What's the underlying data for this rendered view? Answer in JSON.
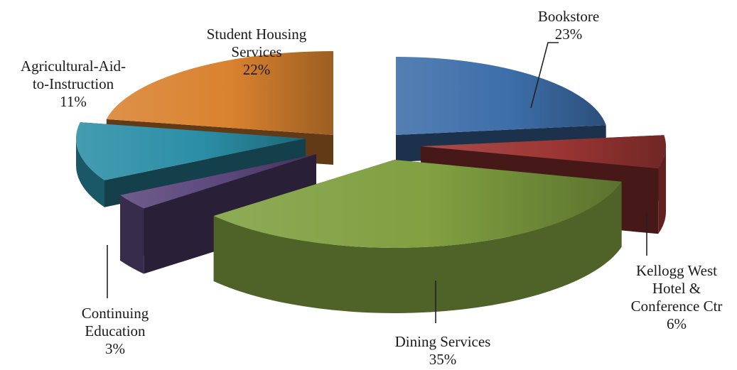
{
  "chart_data": {
    "type": "pie",
    "style": "3d-exploded",
    "title": "",
    "series": [
      {
        "slices": [
          {
            "label": "Bookstore",
            "value": 23,
            "display": "23%",
            "label_lines": [
              "Bookstore",
              "23%"
            ],
            "color": "#3d6ea9"
          },
          {
            "label": "Kellogg West Hotel & Conference Ctr",
            "value": 6,
            "display": "6%",
            "label_lines": [
              "Kellogg West",
              "Hotel &",
              "Conference Ctr",
              "6%"
            ],
            "color": "#9c3634"
          },
          {
            "label": "Dining Services",
            "value": 35,
            "display": "35%",
            "label_lines": [
              "Dining Services",
              "35%"
            ],
            "color": "#7f9f40"
          },
          {
            "label": "Continuing Education",
            "value": 3,
            "display": "3%",
            "label_lines": [
              "Continuing",
              "Education",
              "3%"
            ],
            "color": "#5b477b"
          },
          {
            "label": "Agricultural-Aid-to-Instruction",
            "value": 11,
            "display": "11%",
            "label_lines": [
              "Agricultural-Aid-",
              "to-Instruction",
              "11%"
            ],
            "color": "#2b8ea6"
          },
          {
            "label": "Student Housing Services",
            "value": 22,
            "display": "22%",
            "label_lines": [
              "Student Housing",
              "Services",
              "22%"
            ],
            "color": "#d9822f"
          }
        ]
      }
    ],
    "legend": "none"
  }
}
